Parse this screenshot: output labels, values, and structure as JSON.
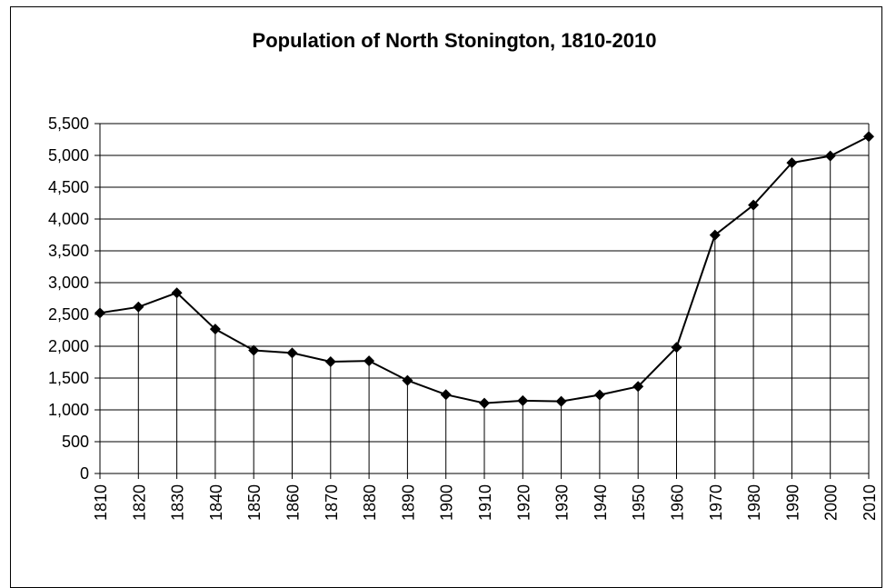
{
  "chart_data": {
    "type": "line",
    "title": "Population of North Stonington, 1810-2010",
    "xlabel": "",
    "ylabel": "",
    "x": [
      "1810",
      "1820",
      "1830",
      "1840",
      "1850",
      "1860",
      "1870",
      "1880",
      "1890",
      "1900",
      "1910",
      "1920",
      "1930",
      "1940",
      "1950",
      "1960",
      "1970",
      "1980",
      "1990",
      "2000",
      "2010"
    ],
    "series": [
      {
        "values": [
          2524,
          2617,
          2840,
          2269,
          1936,
          1895,
          1758,
          1769,
          1463,
          1240,
          1106,
          1144,
          1134,
          1236,
          1367,
          1982,
          3748,
          4219,
          4884,
          4991,
          5297
        ]
      }
    ],
    "ylim": [
      0,
      5500
    ],
    "yticks": [
      "0",
      "500",
      "1,000",
      "1,500",
      "2,000",
      "2,500",
      "3,000",
      "3,500",
      "4,000",
      "4,500",
      "5,000",
      "5,500"
    ],
    "grid": "horizontal and vertical drop lines",
    "legend": "none",
    "colors": {
      "line": "#000000",
      "marker": "#000000",
      "grid": "#000000"
    }
  }
}
